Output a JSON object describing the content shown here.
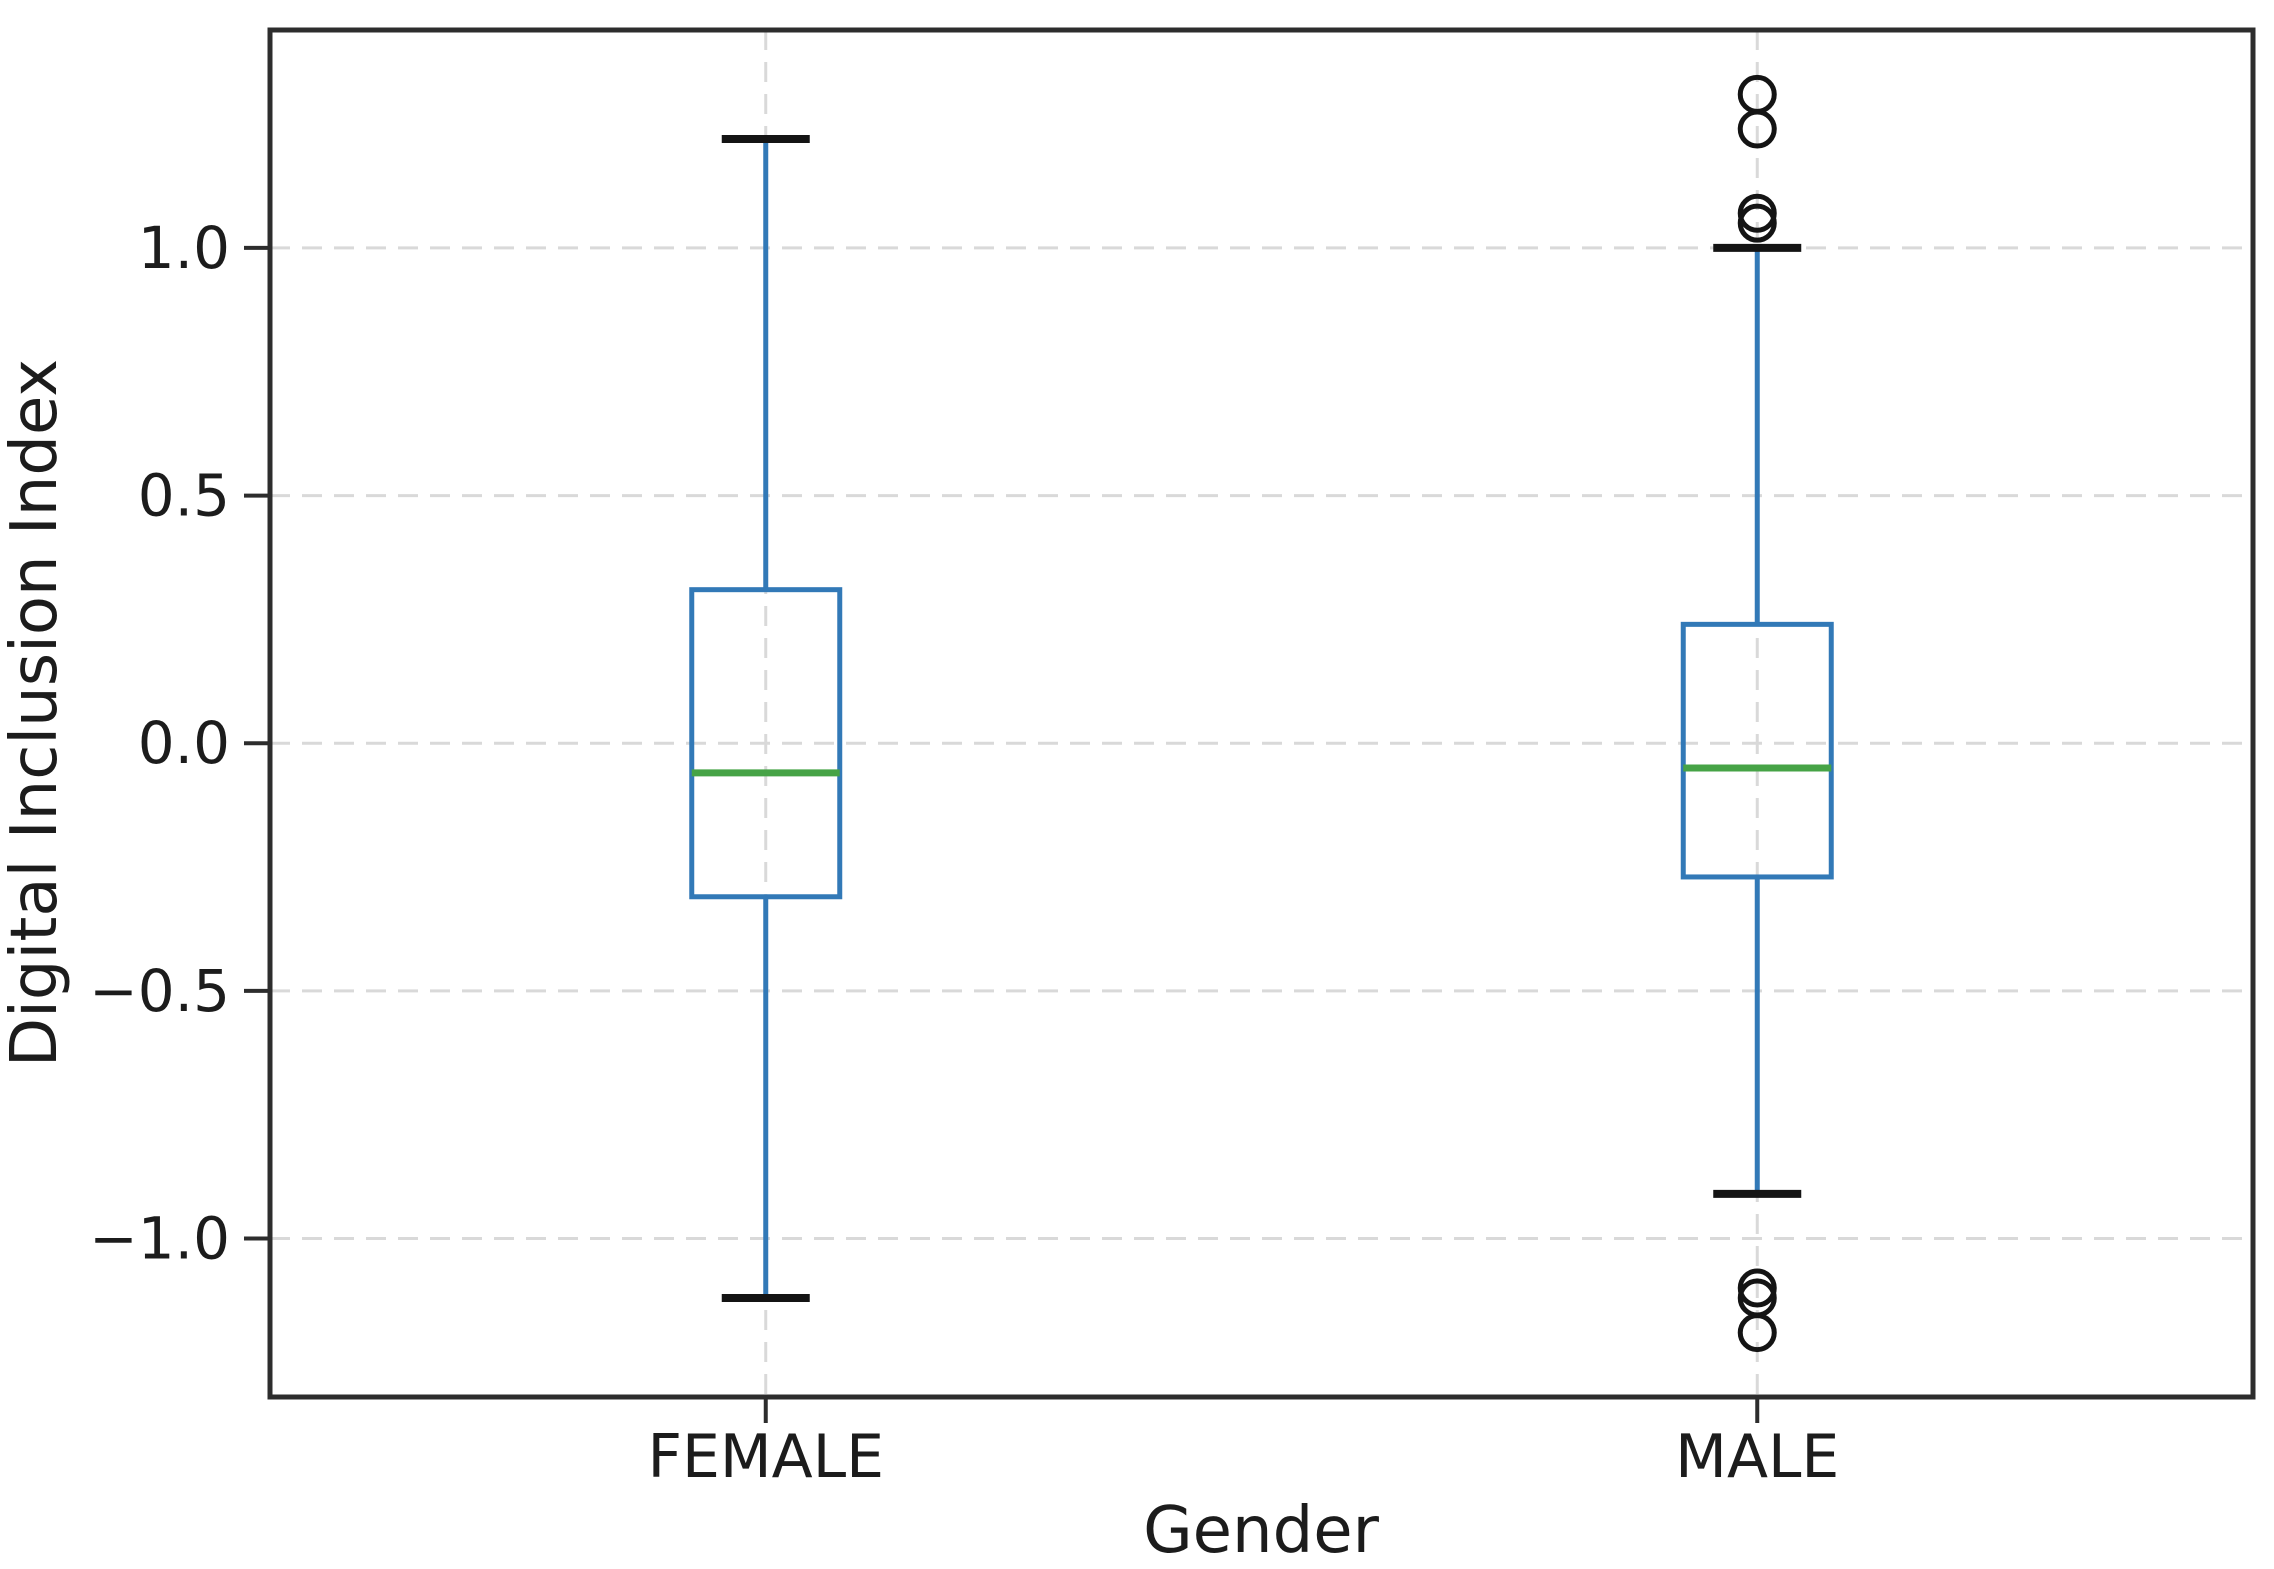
{
  "chart_data": {
    "type": "boxplot",
    "title": "",
    "xlabel": "Gender",
    "ylabel": "Digital Inclusion Index",
    "categories": [
      "FEMALE",
      "MALE"
    ],
    "series": [
      {
        "name": "FEMALE",
        "whisker_low": -1.12,
        "q1": -0.31,
        "median": -0.06,
        "q3": 0.31,
        "whisker_high": 1.22,
        "outliers": []
      },
      {
        "name": "MALE",
        "whisker_low": -0.91,
        "q1": -0.27,
        "median": -0.05,
        "q3": 0.24,
        "whisker_high": 1.0,
        "outliers": [
          1.31,
          1.24,
          1.07,
          1.05,
          -1.1,
          -1.12,
          -1.19
        ]
      }
    ],
    "y_ticks": [
      {
        "value": 1.0,
        "label": "1.0"
      },
      {
        "value": 0.5,
        "label": "0.5"
      },
      {
        "value": 0.0,
        "label": "0.0"
      },
      {
        "value": -0.5,
        "label": "−0.5"
      },
      {
        "value": -1.0,
        "label": "−1.0"
      }
    ],
    "ylim": [
      -1.32,
      1.44
    ],
    "grid": {
      "visible": true,
      "style": "dashed",
      "horizontal": true,
      "vertical": true
    },
    "legend": "none",
    "colors": {
      "box": "#3279b7",
      "whisker": "#3279b7",
      "median": "#46a346",
      "cap": "#141414",
      "outlier": "#141414",
      "grid": "#d9d9d9",
      "spine": "#2d2d2d",
      "text": "#1c1c1c",
      "background": "#ffffff"
    }
  }
}
